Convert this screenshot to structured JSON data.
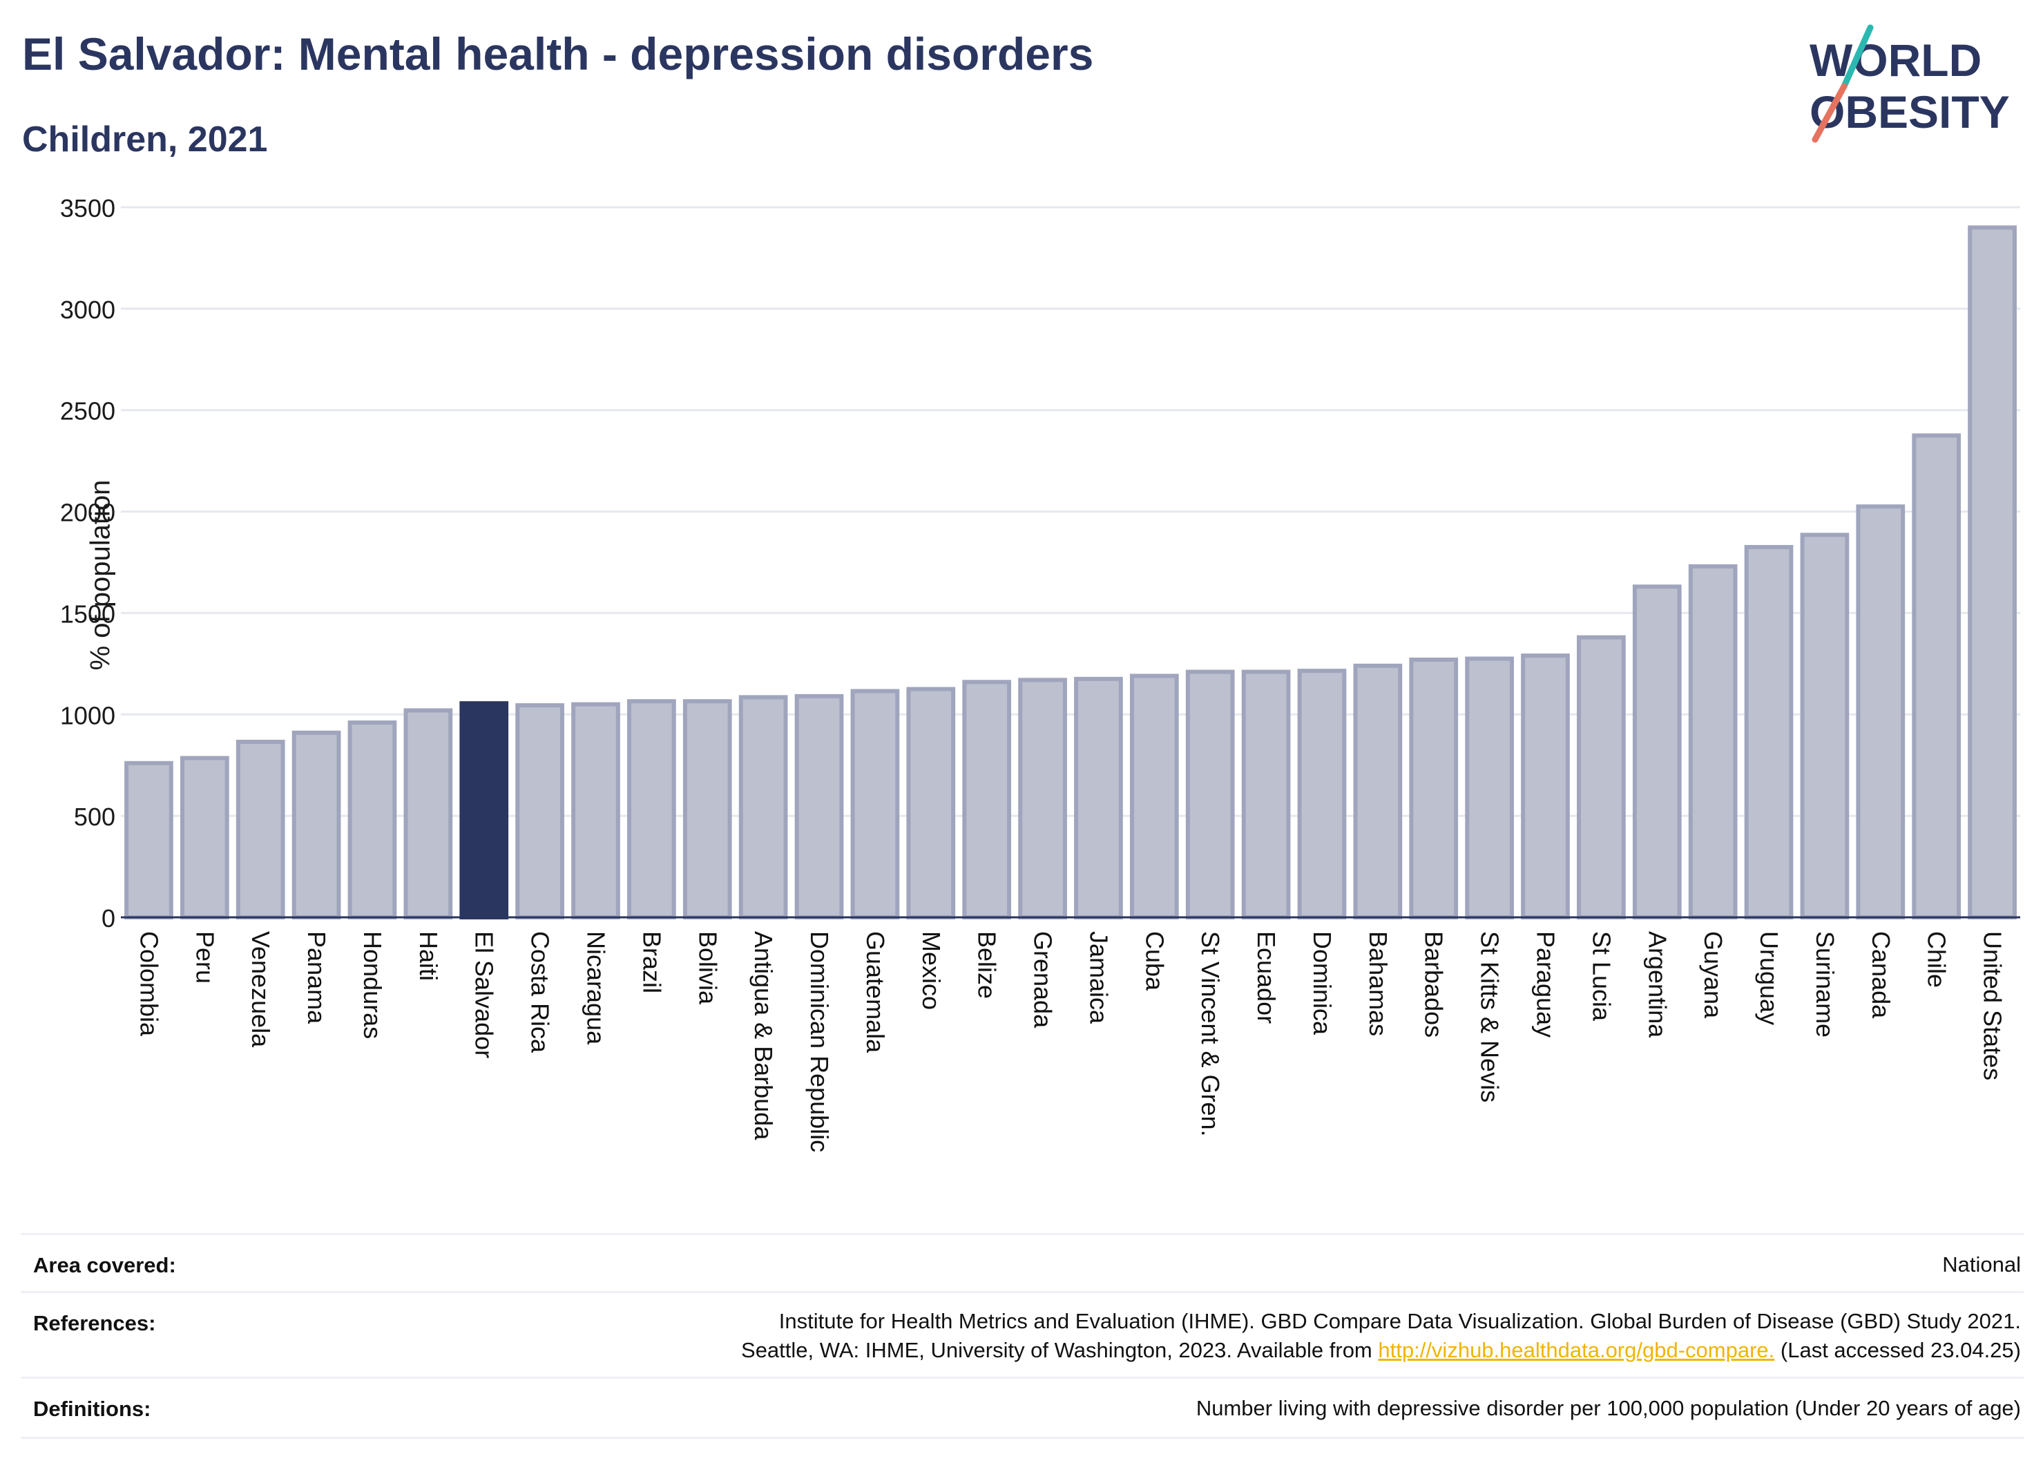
{
  "header": {
    "title": "El Salvador: Mental health - depression disorders",
    "subtitle": "Children, 2021"
  },
  "logo": {
    "line1": "WORLD",
    "line2": "OBESITY"
  },
  "colors": {
    "bar": "#bcc0cf",
    "bar_border": "#a0a5bd",
    "highlight": "#2b3660",
    "text": "#2b3660",
    "link": "#f0b400"
  },
  "chart_data": {
    "type": "bar",
    "title": "El Salvador: Mental health - depression disorders",
    "subtitle": "Children, 2021",
    "ylabel": "% of population",
    "xlabel": "",
    "ylim": [
      0,
      3500
    ],
    "yticks": [
      0,
      500,
      1000,
      1500,
      2000,
      2500,
      3000,
      3500
    ],
    "grid": true,
    "highlight": "El Salvador",
    "categories": [
      "Colombia",
      "Peru",
      "Venezuela",
      "Panama",
      "Honduras",
      "Haiti",
      "El Salvador",
      "Costa Rica",
      "Nicaragua",
      "Brazil",
      "Bolivia",
      "Antigua & Barbuda",
      "Dominican Republic",
      "Guatemala",
      "Mexico",
      "Belize",
      "Grenada",
      "Jamaica",
      "Cuba",
      "St Vincent & Gren.",
      "Ecuador",
      "Dominica",
      "Bahamas",
      "Barbados",
      "St Kitts & Nevis",
      "Paraguay",
      "St Lucia",
      "Argentina",
      "Guyana",
      "Uruguay",
      "Suriname",
      "Canada",
      "Chile",
      "United States"
    ],
    "values": [
      760,
      785,
      865,
      910,
      960,
      1020,
      1055,
      1045,
      1050,
      1065,
      1065,
      1085,
      1090,
      1115,
      1125,
      1160,
      1170,
      1175,
      1190,
      1210,
      1210,
      1215,
      1240,
      1270,
      1275,
      1290,
      1380,
      1630,
      1730,
      1825,
      1885,
      2025,
      2375,
      3400
    ]
  },
  "info": {
    "area_label": "Area covered:",
    "area_value": "National",
    "references_label": "References:",
    "references_line1": "Institute for Health Metrics and Evaluation (IHME). GBD Compare Data Visualization. Global Burden of Disease (GBD) Study 2021.",
    "references_line2_pre": "Seattle, WA: IHME, University of Washington, 2023. Available from",
    "references_link": "http://vizhub.healthdata.org/gbd-compare.",
    "references_line2_post": "(Last accessed 23.04.25)",
    "definitions_label": "Definitions:",
    "definitions_value": "Number living with depressive disorder per 100,000 population (Under 20 years of age)"
  }
}
